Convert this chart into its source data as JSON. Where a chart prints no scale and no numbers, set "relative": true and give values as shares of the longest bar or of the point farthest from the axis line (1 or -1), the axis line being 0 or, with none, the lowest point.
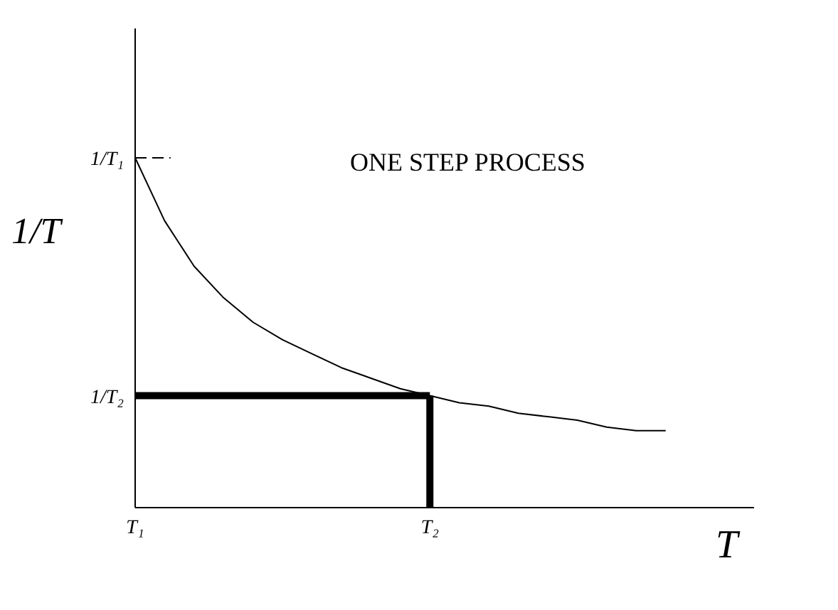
{
  "chart_data": {
    "type": "line",
    "categories": [
      "T₁",
      null,
      null,
      null,
      null,
      null,
      null,
      null,
      null,
      null,
      "T₂",
      null,
      null,
      null,
      null,
      null,
      null,
      null,
      null,
      null,
      null,
      null
    ],
    "series": [
      {
        "color": "#000000",
        "values": [
          1.0,
          0.82,
          0.69,
          0.6,
          0.53,
          0.48,
          0.44,
          0.4,
          0.37,
          0.34,
          0.32,
          0.3,
          0.29,
          0.27,
          0.26,
          0.25,
          0.23,
          0.22,
          0.22,
          null,
          null,
          null
        ]
      }
    ],
    "relative": true,
    "xlabel": "T",
    "ylabel": "1/T",
    "ref_lines": [
      {
        "axis": "y",
        "value": 1,
        "label": "1/T₁",
        "color": "#000000",
        "line_style": "dashed"
      },
      {
        "axis": "y",
        "value": 0.32,
        "label": "1/T₂",
        "color": "#000000"
      },
      {
        "axis": "x",
        "value": "T₂",
        "color": "#000000"
      }
    ],
    "annotations": [
      "ONE STEP PROCESS"
    ],
    "grid": false,
    "legend": false,
    "marker": "none",
    "line_style": "solid"
  }
}
